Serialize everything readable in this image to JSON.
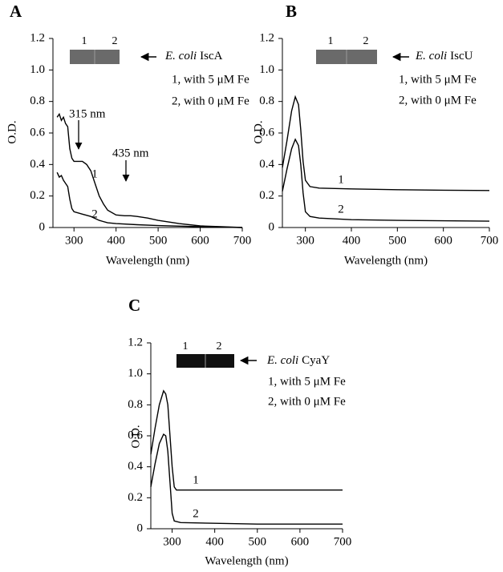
{
  "chart_data": [
    {
      "type": "line",
      "panel": "A",
      "xlabel": "Wavelength (nm)",
      "ylabel": "O.D.",
      "gel_lanes": [
        "1",
        "2"
      ],
      "gel_species": "E. coli",
      "gel_protein": "IscA",
      "legend_notes": [
        "1, with 5 μM Fe",
        "2, with 0 μM Fe"
      ],
      "annotations": [
        "315 nm",
        "435 nm"
      ],
      "xlim": [
        250,
        700
      ],
      "ylim": [
        0,
        1.2
      ],
      "xticks": [
        300,
        400,
        500,
        600,
        700
      ],
      "yticks": [
        0,
        0.2,
        0.4,
        0.6,
        0.8,
        {
          "value": 1,
          "label": "1.0"
        },
        1.2
      ],
      "series": [
        {
          "name": "1",
          "color": "#000000",
          "x": [
            260,
            265,
            270,
            275,
            280,
            285,
            290,
            295,
            300,
            310,
            320,
            330,
            340,
            350,
            360,
            370,
            380,
            400,
            420,
            435,
            450,
            475,
            500,
            550,
            600,
            650,
            700
          ],
          "values": [
            0.7,
            0.72,
            0.68,
            0.7,
            0.66,
            0.64,
            0.5,
            0.44,
            0.42,
            0.42,
            0.42,
            0.4,
            0.36,
            0.28,
            0.2,
            0.15,
            0.11,
            0.08,
            0.075,
            0.075,
            0.07,
            0.06,
            0.045,
            0.025,
            0.01,
            0.005,
            0
          ]
        },
        {
          "name": "2",
          "color": "#000000",
          "x": [
            260,
            265,
            270,
            275,
            280,
            285,
            290,
            295,
            300,
            320,
            340,
            360,
            380,
            400,
            450,
            500,
            600,
            700
          ],
          "values": [
            0.35,
            0.32,
            0.33,
            0.3,
            0.28,
            0.26,
            0.18,
            0.12,
            0.1,
            0.085,
            0.07,
            0.045,
            0.03,
            0.025,
            0.018,
            0.012,
            0.005,
            0
          ]
        }
      ]
    },
    {
      "type": "line",
      "panel": "B",
      "xlabel": "Wavelength (nm)",
      "ylabel": "O.D.",
      "gel_lanes": [
        "1",
        "2"
      ],
      "gel_species": "E. coli",
      "gel_protein": "IscU",
      "legend_notes": [
        "1, with 5 μM Fe",
        "2, with 0 μM Fe"
      ],
      "xlim": [
        250,
        700
      ],
      "ylim": [
        0,
        1.2
      ],
      "xticks": [
        300,
        400,
        500,
        600,
        700
      ],
      "yticks": [
        0,
        0.2,
        0.4,
        0.6,
        0.8,
        {
          "value": 1,
          "label": "1.0"
        },
        1.2
      ],
      "series": [
        {
          "name": "1",
          "color": "#000000",
          "x": [
            250,
            260,
            270,
            278,
            285,
            290,
            295,
            300,
            310,
            330,
            400,
            500,
            600,
            700
          ],
          "values": [
            0.38,
            0.55,
            0.74,
            0.83,
            0.78,
            0.62,
            0.42,
            0.3,
            0.26,
            0.25,
            0.245,
            0.24,
            0.237,
            0.235
          ]
        },
        {
          "name": "2",
          "color": "#000000",
          "x": [
            250,
            260,
            270,
            278,
            285,
            290,
            295,
            300,
            310,
            330,
            400,
            500,
            700
          ],
          "values": [
            0.23,
            0.37,
            0.5,
            0.56,
            0.52,
            0.4,
            0.22,
            0.1,
            0.07,
            0.06,
            0.05,
            0.045,
            0.04
          ]
        }
      ]
    },
    {
      "type": "line",
      "panel": "C",
      "xlabel": "Wavelength (nm)",
      "ylabel": "O.D.",
      "gel_lanes": [
        "1",
        "2"
      ],
      "gel_species": "E. coli",
      "gel_protein": "CyaY",
      "legend_notes": [
        "1, with 5 μM Fe",
        "2, with 0 μM Fe"
      ],
      "xlim": [
        250,
        700
      ],
      "ylim": [
        0,
        1.2
      ],
      "xticks": [
        300,
        400,
        500,
        600,
        700
      ],
      "yticks": [
        0,
        0.2,
        0.4,
        0.6,
        0.8,
        {
          "value": 1,
          "label": "1.0"
        },
        1.2
      ],
      "series": [
        {
          "name": "1",
          "color": "#000000",
          "x": [
            250,
            260,
            270,
            280,
            285,
            290,
            295,
            300,
            305,
            310,
            400,
            500,
            700
          ],
          "values": [
            0.48,
            0.65,
            0.8,
            0.89,
            0.87,
            0.8,
            0.6,
            0.4,
            0.27,
            0.25,
            0.25,
            0.25,
            0.25
          ]
        },
        {
          "name": "2",
          "color": "#000000",
          "x": [
            250,
            260,
            270,
            280,
            285,
            290,
            295,
            300,
            305,
            320,
            400,
            500,
            700
          ],
          "values": [
            0.27,
            0.42,
            0.55,
            0.61,
            0.6,
            0.5,
            0.3,
            0.1,
            0.05,
            0.04,
            0.035,
            0.03,
            0.03
          ]
        }
      ]
    }
  ]
}
